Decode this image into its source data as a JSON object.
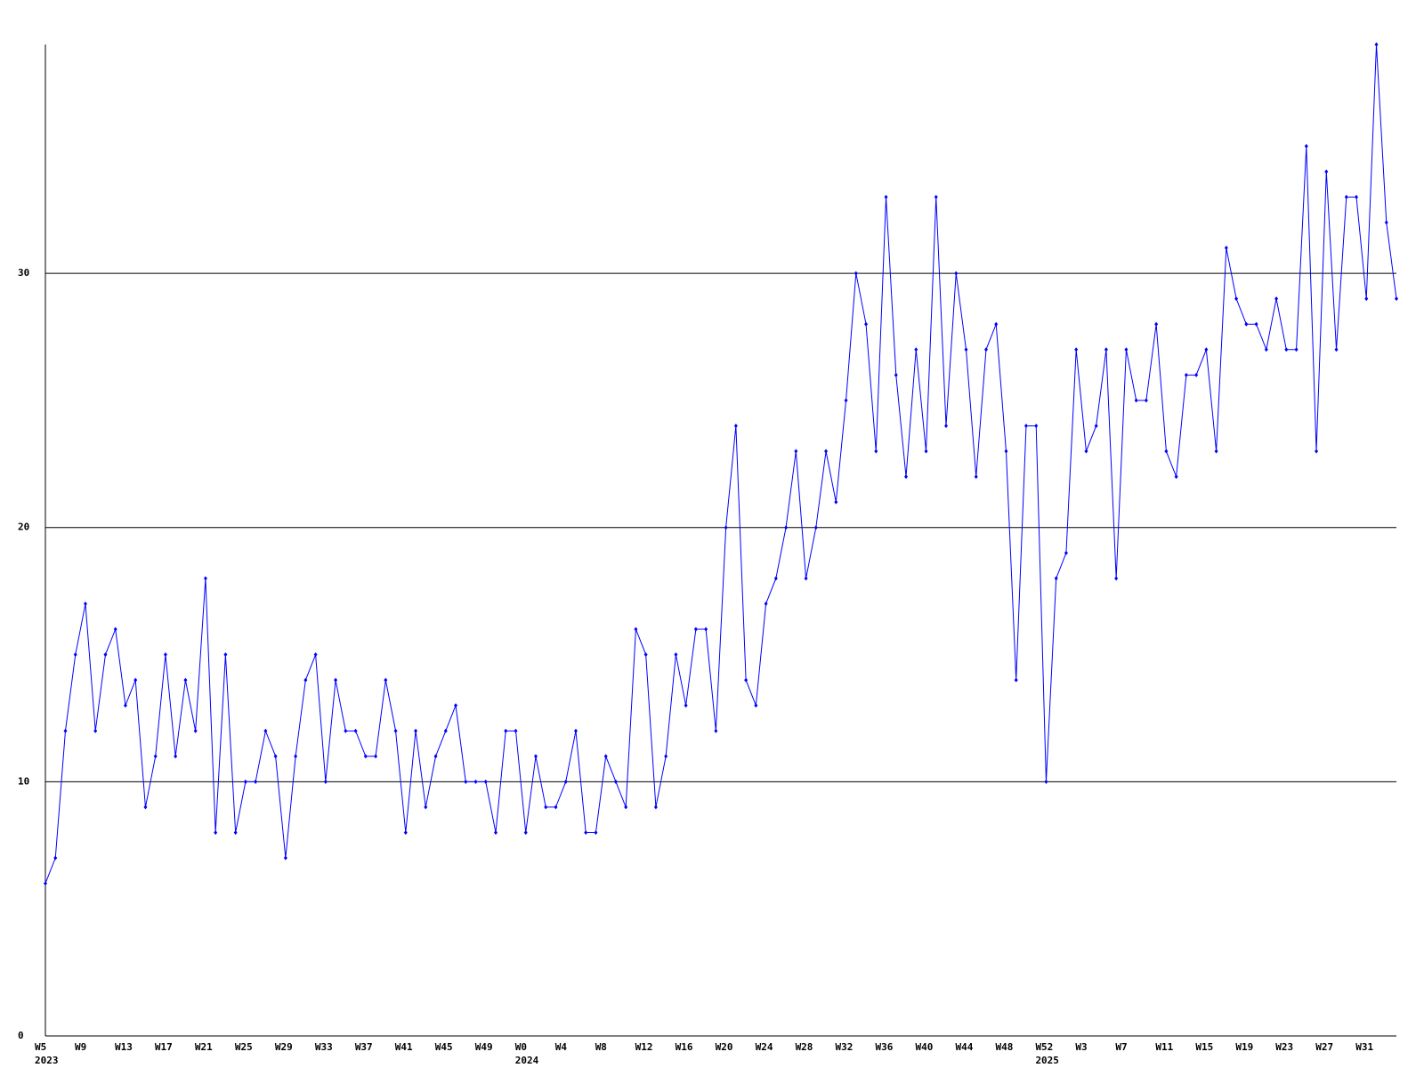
{
  "chart_data": {
    "type": "line",
    "color": "#0000ff",
    "grid": true,
    "categories": [
      "W5",
      null,
      null,
      null,
      "W9",
      null,
      null,
      null,
      "W13",
      null,
      null,
      null,
      "W17",
      null,
      null,
      null,
      "W21",
      null,
      null,
      null,
      "W25",
      null,
      null,
      null,
      "W29",
      null,
      null,
      null,
      "W33",
      null,
      null,
      null,
      "W37",
      null,
      null,
      null,
      "W41",
      null,
      null,
      null,
      "W45",
      null,
      null,
      null,
      "W49",
      null,
      null,
      null,
      "W0",
      null,
      null,
      null,
      "W4",
      null,
      null,
      null,
      "W8",
      null,
      null,
      null,
      "W12",
      null,
      null,
      null,
      "W16",
      null,
      null,
      null,
      "W20",
      null,
      null,
      null,
      "W24",
      null,
      null,
      null,
      "W28",
      null,
      null,
      null,
      "W32",
      null,
      null,
      null,
      "W36",
      null,
      null,
      null,
      "W40",
      null,
      null,
      null,
      "W44",
      null,
      null,
      null,
      "W48",
      null,
      null,
      null,
      "W52",
      null,
      null,
      null,
      "W3",
      null,
      null,
      null,
      "W7",
      null,
      null,
      null,
      "W11",
      null,
      null,
      null,
      "W15",
      null,
      null,
      null,
      "W19",
      null,
      null,
      null,
      "W23",
      null,
      null,
      null,
      "W27",
      null,
      null,
      null,
      "W31",
      null,
      null,
      null
    ],
    "values": [
      6,
      7,
      12,
      15,
      17,
      12,
      15,
      16,
      13,
      14,
      9,
      11,
      15,
      11,
      14,
      12,
      18,
      8,
      15,
      8,
      10,
      10,
      12,
      11,
      7,
      11,
      14,
      15,
      10,
      14,
      12,
      12,
      11,
      11,
      14,
      12,
      8,
      12,
      9,
      11,
      12,
      13,
      10,
      10,
      10,
      8,
      12,
      12,
      8,
      11,
      9,
      9,
      10,
      12,
      8,
      8,
      11,
      10,
      9,
      16,
      15,
      9,
      11,
      15,
      13,
      16,
      16,
      12,
      20,
      24,
      14,
      13,
      17,
      18,
      20,
      23,
      18,
      20,
      23,
      21,
      25,
      30,
      28,
      23,
      33,
      26,
      22,
      27,
      23,
      33,
      24,
      30,
      27,
      22,
      27,
      28,
      23,
      14,
      24,
      24,
      10,
      18,
      19,
      27,
      23,
      24,
      27,
      18,
      27,
      25,
      25,
      28,
      23,
      22,
      26,
      26,
      27,
      23,
      31,
      29,
      28,
      28,
      27,
      29,
      27,
      27,
      35,
      23,
      34,
      27,
      33,
      33,
      29,
      39,
      32,
      29
    ],
    "year_labels": [
      {
        "category": 0,
        "label": "2023"
      },
      {
        "category": 48,
        "label": "2024"
      },
      {
        "category": 100,
        "label": "2025"
      }
    ],
    "ylim": [
      0,
      39
    ],
    "yticks": [
      0,
      10,
      20,
      30
    ]
  }
}
